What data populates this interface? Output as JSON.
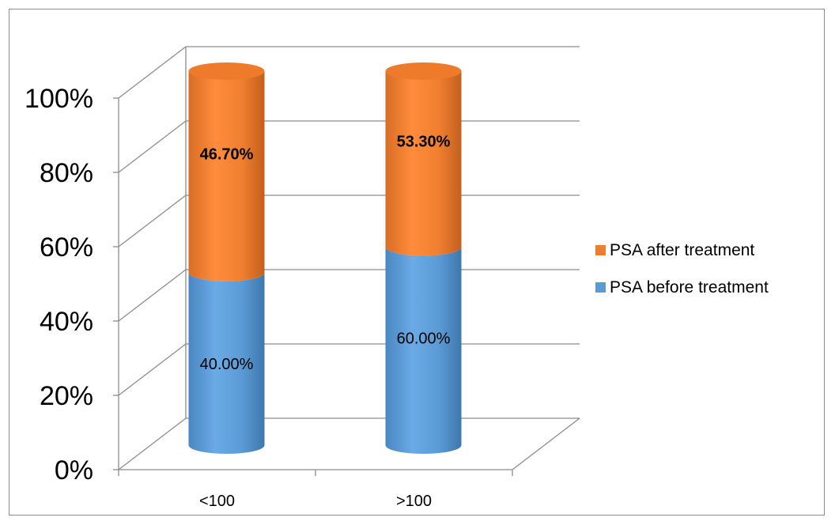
{
  "chart_data": {
    "type": "bar",
    "style": "3d-stacked-cylinder-100-percent",
    "categories": [
      "<100",
      ">100"
    ],
    "series": [
      {
        "name": "PSA before treatment",
        "values": [
          40.0,
          60.0
        ],
        "labels": [
          "40.00%",
          "60.00%"
        ],
        "color": "#5B9BD5"
      },
      {
        "name": "PSA after treatment",
        "values": [
          46.7,
          53.3
        ],
        "labels": [
          "46.70%",
          "53.30%"
        ],
        "color": "#ED7D31"
      }
    ],
    "y_ticks": [
      "0%",
      "20%",
      "40%",
      "60%",
      "80%",
      "100%"
    ],
    "ylim": [
      0,
      100
    ],
    "grid": true,
    "legend": {
      "position": "right",
      "order": [
        "PSA after treatment",
        "PSA before treatment"
      ]
    }
  }
}
